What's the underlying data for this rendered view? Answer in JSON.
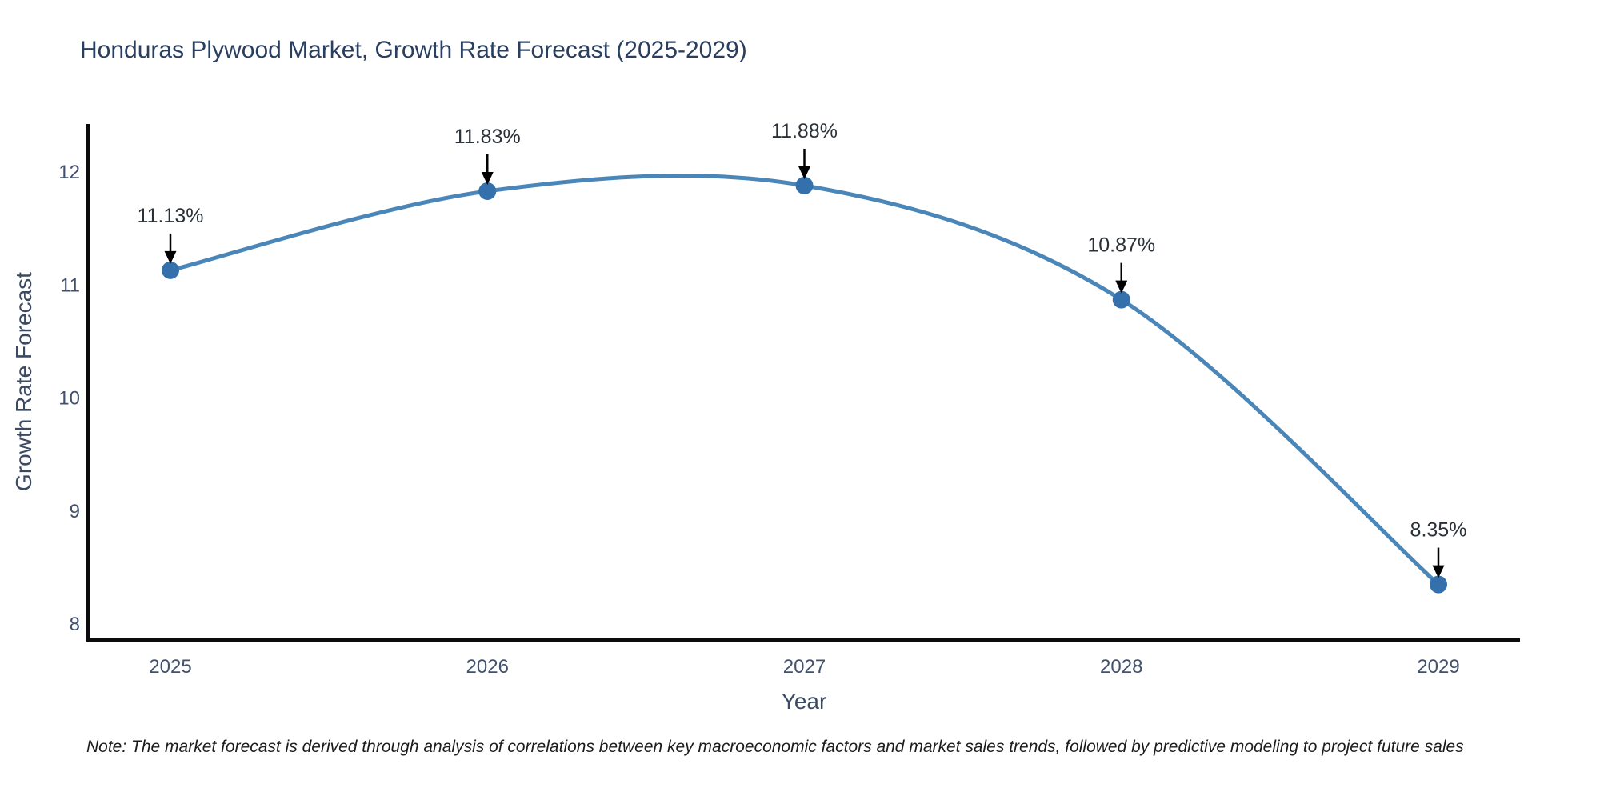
{
  "header": {
    "title": "Honduras Plywood Market, Growth Rate Forecast (2025-2029)"
  },
  "chart_data": {
    "type": "line",
    "line_shape": "spline",
    "x": [
      2025,
      2026,
      2027,
      2028,
      2029
    ],
    "values": [
      11.13,
      11.83,
      11.88,
      10.87,
      8.35
    ],
    "point_labels": [
      "11.13%",
      "11.83%",
      "11.88%",
      "10.87%",
      "8.35%"
    ],
    "title": "Honduras Plywood Market, Growth Rate Forecast (2025-2029)",
    "xlabel": "Year",
    "ylabel": "Growth Rate Forecast",
    "xticks": [
      "2025",
      "2026",
      "2027",
      "2028",
      "2029"
    ],
    "yticks": [
      12,
      11,
      10,
      9,
      8
    ],
    "xlim": [
      2024.74,
      2029.26
    ],
    "ylim": [
      7.86,
      12.43
    ],
    "grid": false,
    "legend": "none",
    "colors": {
      "line": "#4a86b8",
      "marker": "#3470ab",
      "axis": "#0c0c0c",
      "annotation_arrow": "#000000",
      "tick_label": "#42516d",
      "title": "#2a3f5f"
    }
  },
  "footnote": "Note: The market forecast is derived through analysis of correlations between key macroeconomic factors and market sales trends, followed by predictive modeling to project future sales"
}
